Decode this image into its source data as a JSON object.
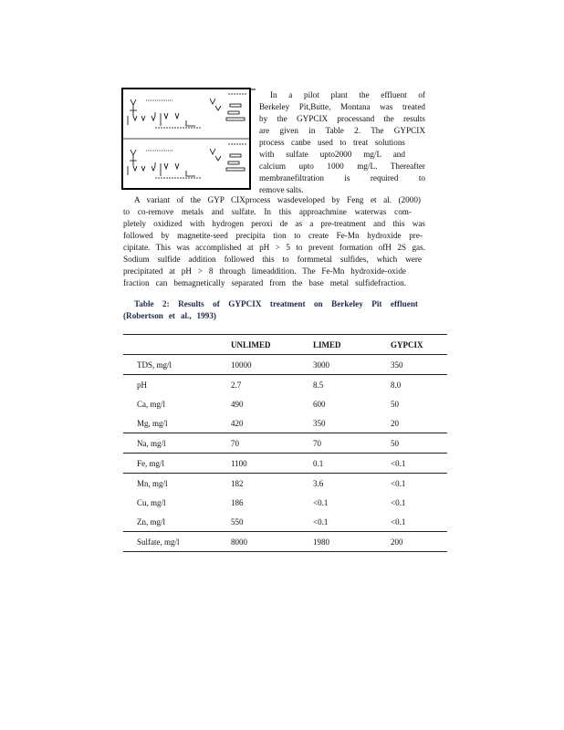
{
  "paragraph1": [
    "In a pilot plant the effluent of",
    "Berkeley Pit,Butte, Montana was treated",
    "by the GYPCIX processand the results",
    "are given in Table 2. The GYPCIX",
    "process canbe used to treat solutions",
    "with sulfate upto2000 mg/L and",
    "calcium upto 1000 mg/L. Thereafter",
    "membranefiltration is required to",
    "remove salts."
  ],
  "paragraph2": [
    "A variant of the GYP CIXprocess wasdeveloped by Feng et al. (2000)",
    "to co-remove metals and sulfate. In this approachmine waterwas com-",
    "pletely oxidized with hydrogen peroxi de as a pre-treatment and this was",
    "followed by magnetite-seed precipita tion to create Fe-Mn hydroxide pre-",
    "cipitate. This was accomplished at pH > 5 to prevent formation ofH 2S gas.",
    "Sodium sulfide addition followed this to formmetal sulfides, which were",
    "precipitated at pH > 8 through limeaddition. The Fe-Mn hydroxide-oxide",
    "fraction can bemagnetically separated from the base metal sulfidefraction."
  ],
  "caption": [
    "Table 2: Results of GYPCIX treatment on Berkeley Pit effluent",
    "(Robertson et al., 1993)"
  ],
  "table": {
    "headers": [
      "",
      "UNLIMED",
      "LIMED",
      "GYPCIX"
    ],
    "rows": [
      [
        "TDS, mg/l",
        "10000",
        "3000",
        "350"
      ],
      [
        "pH",
        "2.7",
        "8.5",
        "8.0"
      ],
      [
        "Ca, mg/l",
        "490",
        "600",
        "50"
      ],
      [
        "Mg, mg/l",
        "420",
        "350",
        "20"
      ],
      [
        "Na, mg/l",
        "70",
        "70",
        "50"
      ],
      [
        "Fe, mg/l",
        "1100",
        "0.1",
        "<0.1"
      ],
      [
        "Mn, mg/l",
        "182",
        "3.6",
        "<0.1"
      ],
      [
        "Cu, mg/l",
        "186",
        "<0.1",
        "<0.1"
      ],
      [
        "Zn, mg/l",
        "550",
        "<0.1",
        "<0.1"
      ],
      [
        "Sulfate, mg/l",
        "8000",
        "1980",
        "200"
      ]
    ]
  },
  "colors": {
    "caption": "#1f2a4a"
  }
}
